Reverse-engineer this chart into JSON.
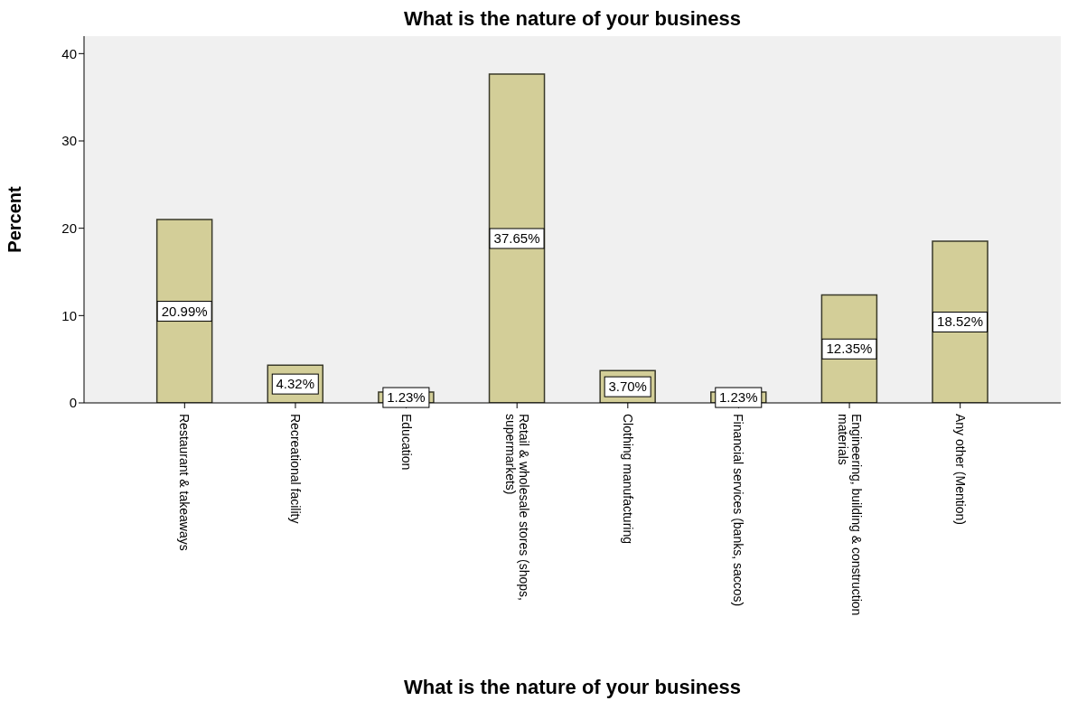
{
  "chart_data": {
    "type": "bar",
    "title": "What is the nature of your business",
    "xlabel": "What is the nature of your business",
    "ylabel": "Percent",
    "categories": [
      "Restaurant & takeaways",
      "Recreational facility",
      "Education",
      "Retail & wholesale stores (shops, supermarkets)",
      "Clothing manufacturing",
      "Financial services (banks, saccos)",
      "Engineering, building & construction materials",
      "Any other (Mention)"
    ],
    "values": [
      20.99,
      4.32,
      1.23,
      37.65,
      3.7,
      1.23,
      12.35,
      18.52
    ],
    "value_labels": [
      "20.99%",
      "4.32%",
      "1.23%",
      "37.65%",
      "3.70%",
      "1.23%",
      "12.35%",
      "18.52%"
    ],
    "color": "#d3ce98",
    "ylim": [
      0,
      42
    ],
    "yticks": [
      0,
      10,
      20,
      30,
      40
    ]
  }
}
